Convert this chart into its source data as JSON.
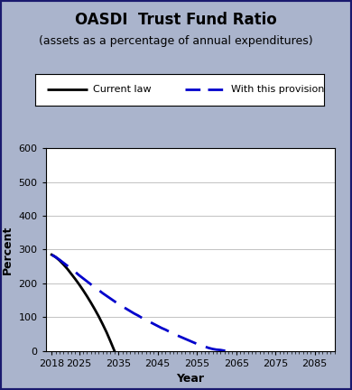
{
  "title": "OASDI  Trust Fund Ratio",
  "subtitle": "(assets as a percentage of annual expenditures)",
  "xlabel": "Year",
  "ylabel": "Percent",
  "xlim": [
    2016.5,
    2090
  ],
  "ylim": [
    0,
    600
  ],
  "xticks": [
    2018,
    2025,
    2035,
    2045,
    2055,
    2065,
    2075,
    2085
  ],
  "yticks": [
    0,
    100,
    200,
    300,
    400,
    500,
    600
  ],
  "background_color": "#aab4cc",
  "plot_bg_color": "#ffffff",
  "border_color": "#1a1a6e",
  "current_law": {
    "x": [
      2018,
      2019,
      2020,
      2021,
      2022,
      2023,
      2024,
      2025,
      2026,
      2027,
      2028,
      2029,
      2030,
      2031,
      2032,
      2033,
      2034
    ],
    "y": [
      285,
      278,
      268,
      256,
      243,
      228,
      213,
      197,
      180,
      162,
      143,
      123,
      102,
      79,
      55,
      28,
      0
    ],
    "color": "#000000",
    "linestyle": "solid",
    "linewidth": 2.0,
    "label": "Current law"
  },
  "provision": {
    "x": [
      2018,
      2019,
      2020,
      2021,
      2022,
      2023,
      2024,
      2025,
      2026,
      2027,
      2028,
      2029,
      2030,
      2031,
      2032,
      2033,
      2034,
      2035,
      2036,
      2037,
      2038,
      2039,
      2040,
      2041,
      2042,
      2043,
      2044,
      2045,
      2046,
      2047,
      2048,
      2049,
      2050,
      2051,
      2052,
      2053,
      2054,
      2055,
      2056,
      2057,
      2058,
      2059,
      2060,
      2061,
      2062,
      2063
    ],
    "y": [
      285,
      278,
      270,
      261,
      252,
      243,
      234,
      224,
      215,
      206,
      197,
      188,
      180,
      171,
      163,
      155,
      147,
      139,
      132,
      125,
      118,
      111,
      105,
      98,
      92,
      86,
      80,
      74,
      68,
      63,
      57,
      52,
      46,
      41,
      36,
      31,
      26,
      21,
      17,
      13,
      9,
      6,
      4,
      3,
      1,
      0
    ],
    "color": "#0000cc",
    "linestyle": "dashed",
    "linewidth": 2.0,
    "label": "With this provision"
  },
  "title_fontsize": 12,
  "subtitle_fontsize": 9,
  "axis_label_fontsize": 9,
  "tick_fontsize": 8,
  "legend_fontsize": 8
}
